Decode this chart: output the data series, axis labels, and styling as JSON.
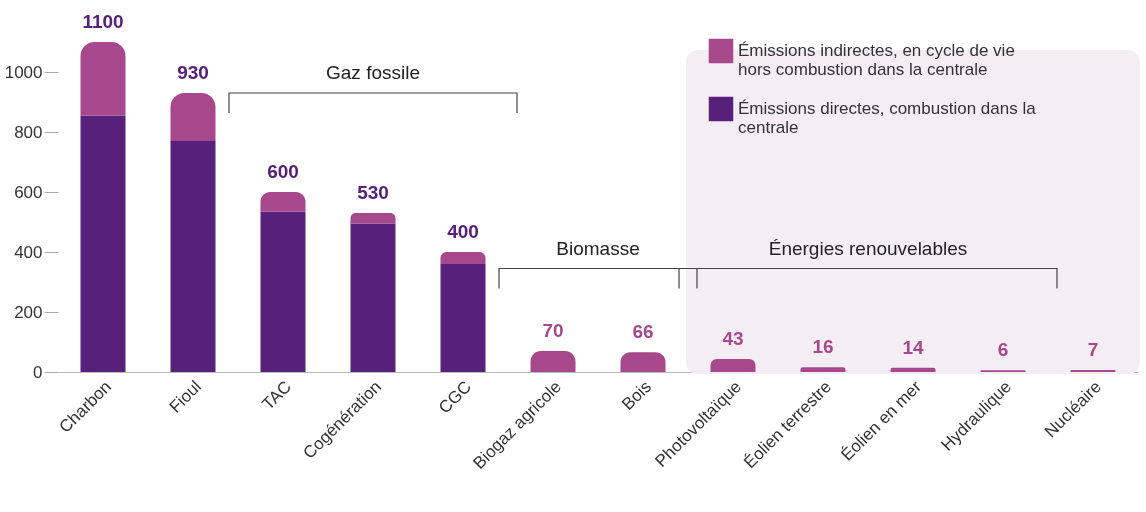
{
  "chart_data": {
    "type": "bar",
    "stacked": true,
    "categories": [
      "Charbon",
      "Fioul",
      "TAC",
      "Cogénération",
      "CGC",
      "Biogaz agricole",
      "Bois",
      "Photovoltaïque",
      "Éolien terrestre",
      "Éolien en mer",
      "Hydraulique",
      "Nucléaire"
    ],
    "series": [
      {
        "name": "Émissions directes, combustion dans la centrale",
        "color": "#57207a",
        "values": [
          855,
          770,
          535,
          495,
          360,
          null,
          null,
          null,
          null,
          null,
          null,
          null
        ]
      },
      {
        "name": "Émissions indirectes, en cycle de vie hors combustion dans la centrale",
        "color": "#a8488c",
        "values": [
          245,
          160,
          65,
          35,
          40,
          70,
          66,
          43,
          16,
          14,
          6,
          7
        ]
      }
    ],
    "totals": [
      "1100",
      "930",
      "600",
      "530",
      "400",
      "70",
      "66",
      "43",
      "16",
      "14",
      "6",
      "7"
    ],
    "ylim": [
      0,
      1100
    ],
    "yticks": [
      0,
      200,
      400,
      600,
      800,
      1000
    ],
    "grid": false,
    "legend": "top right",
    "annotations": [
      "Gaz fossile",
      "Biomasse",
      "Énergies renouvelables"
    ],
    "bands": [
      {
        "axis": "x",
        "from": "Photovoltaïque",
        "to": "Nucléaire",
        "color": "#f5edf4"
      }
    ]
  }
}
